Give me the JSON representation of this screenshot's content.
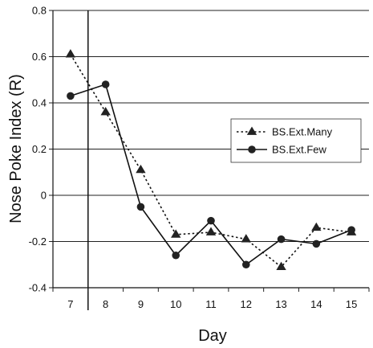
{
  "chart_data": {
    "type": "line",
    "title": "",
    "xlabel": "Day",
    "ylabel": "Nose Poke Index (R)",
    "categories": [
      "7",
      "8",
      "9",
      "10",
      "11",
      "12",
      "13",
      "14",
      "15"
    ],
    "ylim": [
      -0.4,
      0.8
    ],
    "yticks": [
      "-0.4",
      "-0.2",
      "0",
      "0.2",
      "0.4",
      "0.6",
      "0.8"
    ],
    "grid": "horizontal",
    "legend_position": "right",
    "series": [
      {
        "name": "BS.Ext.Many",
        "style": "dotted",
        "marker": "triangle",
        "color": "#111111",
        "values": [
          0.61,
          0.36,
          0.11,
          -0.17,
          -0.16,
          -0.19,
          -0.31,
          -0.14,
          -0.16
        ]
      },
      {
        "name": "BS.Ext.Few",
        "style": "solid",
        "marker": "circle",
        "color": "#111111",
        "values": [
          0.43,
          0.48,
          -0.05,
          -0.26,
          -0.11,
          -0.3,
          -0.19,
          -0.21,
          -0.15
        ]
      }
    ]
  }
}
